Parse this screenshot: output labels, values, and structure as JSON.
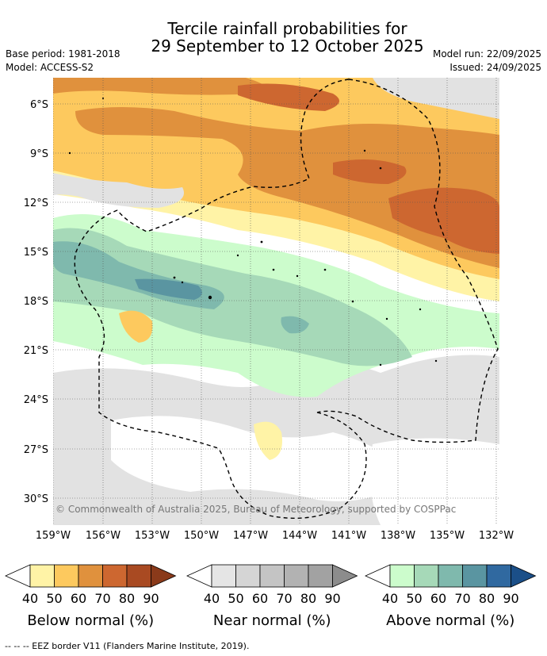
{
  "title_line1": "Tercile rainfall probabilities for",
  "title_line2": "29 September to 12 October 2025",
  "base_period": "Base period: 1981-2018",
  "model": "Model: ACCESS-S2",
  "model_run": "Model run: 22/09/2025",
  "issued": "Issued: 24/09/2025",
  "copyright": "© Commonwealth of Australia 2025, Bureau of Meteorology, supported by COSPPac",
  "lat_labels": [
    "6°S",
    "9°S",
    "12°S",
    "15°S",
    "18°S",
    "21°S",
    "24°S",
    "27°S",
    "30°S"
  ],
  "lon_labels": [
    "159°W",
    "156°W",
    "153°W",
    "150°W",
    "147°W",
    "144°W",
    "141°W",
    "138°W",
    "135°W",
    "132°W"
  ],
  "colorbars": [
    {
      "title": "Below normal (%)",
      "ticks": [
        "40",
        "50",
        "60",
        "70",
        "80",
        "90"
      ],
      "colors": [
        "#fff3a6",
        "#fdc95e",
        "#e0913d",
        "#cd6730",
        "#a94a22",
        "#8a3a1a"
      ]
    },
    {
      "title": "Near normal (%)",
      "ticks": [
        "40",
        "50",
        "60",
        "70",
        "80",
        "90"
      ],
      "colors": [
        "#e5e5e5",
        "#d5d5d5",
        "#c4c4c4",
        "#b2b2b2",
        "#a2a2a2",
        "#8c8c8c"
      ]
    },
    {
      "title": "Above normal (%)",
      "ticks": [
        "40",
        "50",
        "60",
        "70",
        "80",
        "90"
      ],
      "colors": [
        "#ccfccc",
        "#a6d9b8",
        "#7fb9ad",
        "#5a95a1",
        "#3069a0",
        "#1b4f88"
      ]
    }
  ],
  "eez_note": "-- -- -- EEZ border V11 (Flanders Marine Institute, 2019)."
}
